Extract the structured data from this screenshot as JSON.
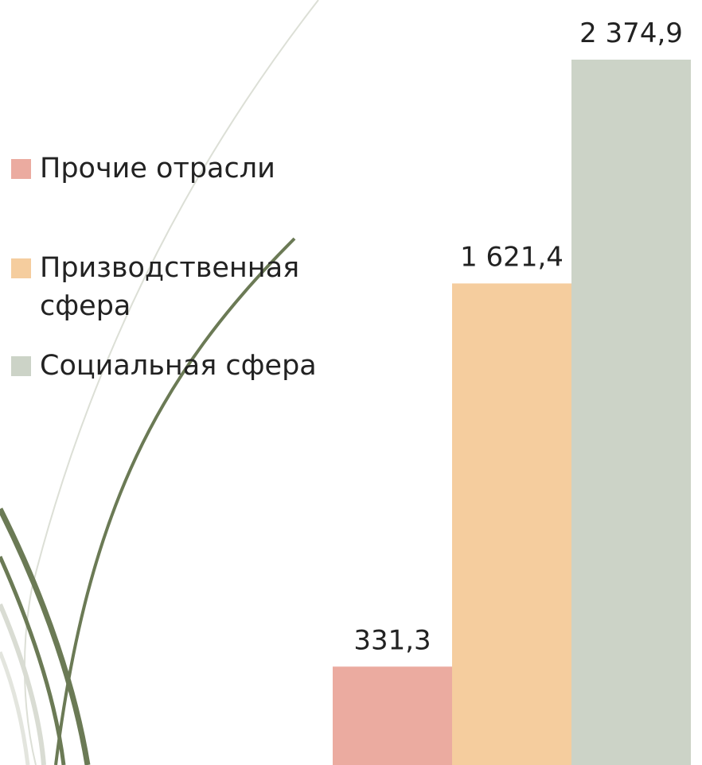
{
  "chart_data": {
    "type": "bar",
    "categories": [
      null
    ],
    "series": [
      {
        "name": "Прочие отрасли",
        "color": "#ebaba0",
        "values": [
          331.3
        ],
        "value_labels": [
          "331,3"
        ]
      },
      {
        "name": "Призводственная сфера",
        "color": "#f5cd9e",
        "values": [
          1621.4
        ],
        "value_labels": [
          "1 621,4"
        ]
      },
      {
        "name": "Социальная сфера",
        "color": "#ccd3c7",
        "values": [
          2374.9
        ],
        "value_labels": [
          "2 374,9"
        ]
      }
    ]
  }
}
